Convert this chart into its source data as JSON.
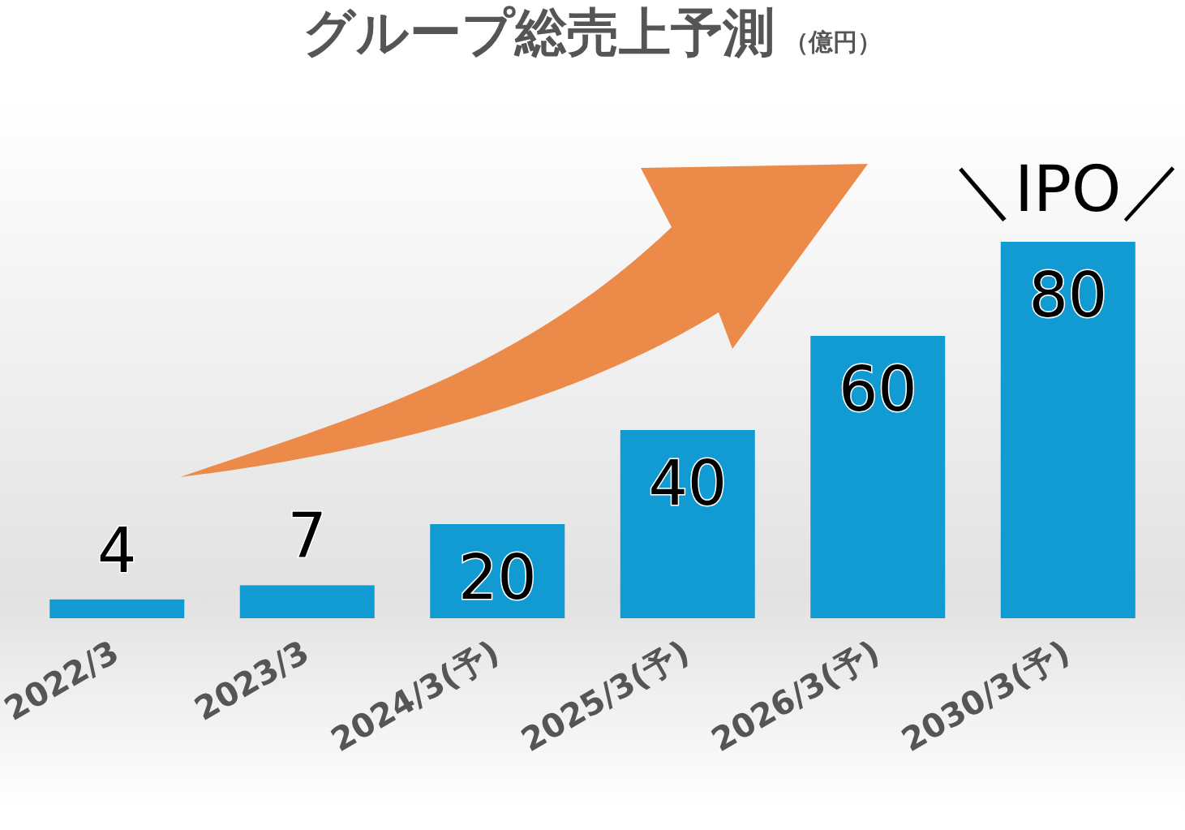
{
  "chart_data": {
    "type": "bar",
    "title": "グループ総売上予測",
    "subtitle": "（億円）",
    "categories": [
      "2022/3",
      "2023/3",
      "2024/3(予)",
      "2025/3(予)",
      "2026/3(予)",
      "2030/3(予)"
    ],
    "values": [
      4,
      7,
      20,
      40,
      60,
      80
    ],
    "color": "#129ad2",
    "data_labels": true,
    "annotations": [
      {
        "text": "＼IPO／",
        "x": "2030/3(予)",
        "y": 80
      }
    ]
  }
}
